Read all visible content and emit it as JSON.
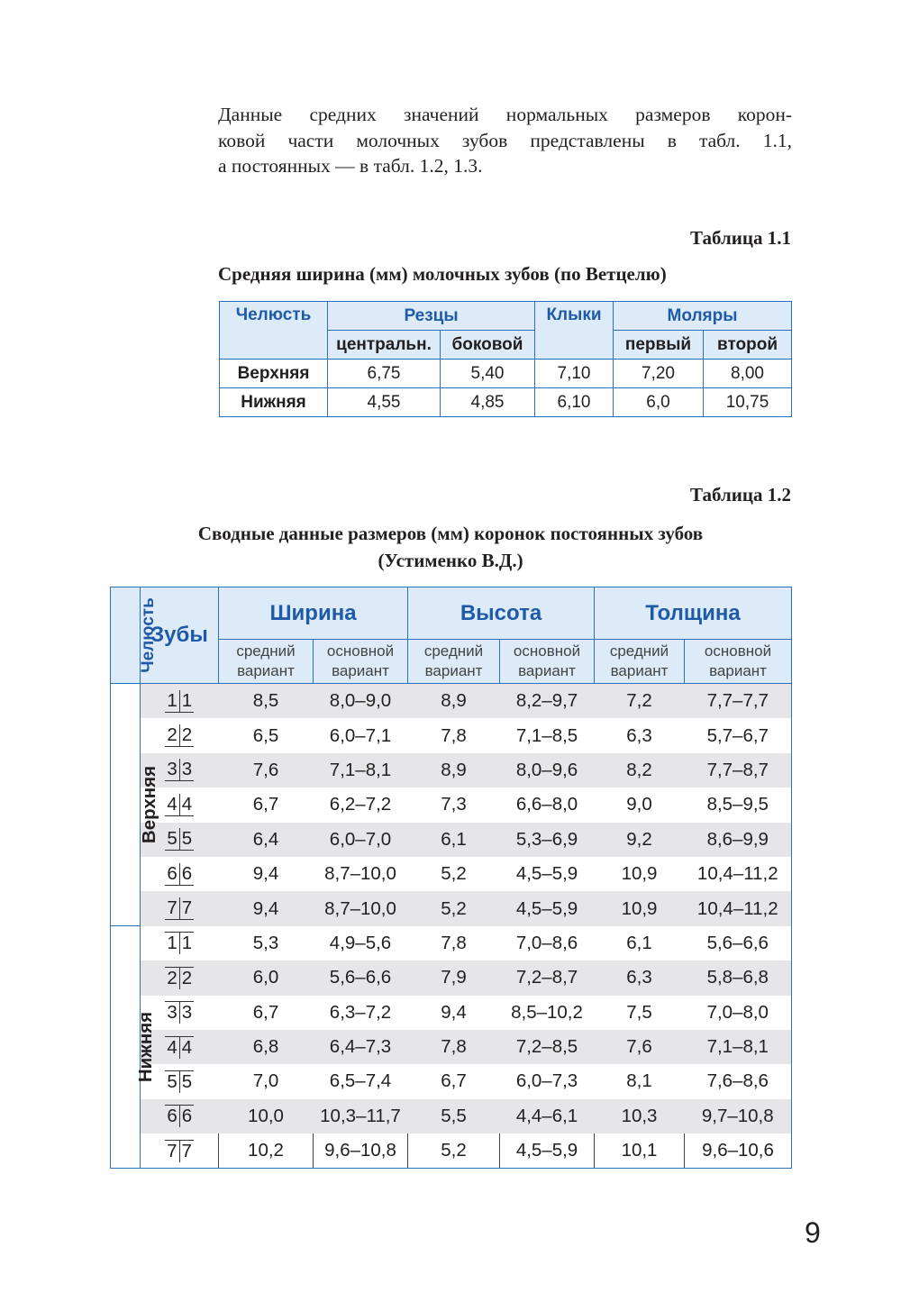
{
  "paragraph": [
    "Данные средних значений нормальных размеров корон-",
    "ковой части молочных зубов представлены в табл. 1.1,",
    "а постоянных — в табл. 1.2, 1.3."
  ],
  "table1": {
    "label": "Таблица 1.1",
    "title": "Средняя ширина (мм) молочных зубов (по Ветцелю)",
    "header": {
      "jaw": "Челюсть",
      "incisors": "Резцы",
      "canines": "Клыки",
      "molars": "Моляры",
      "central": "центральн.",
      "lateral": "боковой",
      "first": "первый",
      "second": "второй"
    },
    "rows": [
      {
        "name": "Верхняя",
        "values": [
          "6,75",
          "5,40",
          "7,10",
          "7,20",
          "8,00"
        ]
      },
      {
        "name": "Нижняя",
        "values": [
          "4,55",
          "4,85",
          "6,10",
          "6,0",
          "10,75"
        ]
      }
    ]
  },
  "table2": {
    "label": "Таблица 1.2",
    "title": [
      "Сводные данные размеров (мм) коронок постоянных зубов",
      "(Устименко В.Д.)"
    ],
    "header": {
      "jaw": "Челюсть",
      "teeth": "Зубы",
      "groups": [
        "Ширина",
        "Высота",
        "Толщина"
      ],
      "sub": [
        "средний вариант",
        "основной вариант",
        "средний вариант",
        "основной вариант",
        "средний вариант",
        "основной вариант"
      ]
    },
    "jaws": [
      {
        "name": "Верхняя",
        "rows": [
          {
            "teeth": [
              "1",
              "1"
            ],
            "values": [
              "8,5",
              "8,0–9,0",
              "8,9",
              "8,2–9,7",
              "7,2",
              "7,7–7,7"
            ]
          },
          {
            "teeth": [
              "2",
              "2"
            ],
            "values": [
              "6,5",
              "6,0–7,1",
              "7,8",
              "7,1–8,5",
              "6,3",
              "5,7–6,7"
            ]
          },
          {
            "teeth": [
              "3",
              "3"
            ],
            "values": [
              "7,6",
              "7,1–8,1",
              "8,9",
              "8,0–9,6",
              "8,2",
              "7,7–8,7"
            ]
          },
          {
            "teeth": [
              "4",
              "4"
            ],
            "values": [
              "6,7",
              "6,2–7,2",
              "7,3",
              "6,6–8,0",
              "9,0",
              "8,5–9,5"
            ]
          },
          {
            "teeth": [
              "5",
              "5"
            ],
            "values": [
              "6,4",
              "6,0–7,0",
              "6,1",
              "5,3–6,9",
              "9,2",
              "8,6–9,9"
            ]
          },
          {
            "teeth": [
              "6",
              "6"
            ],
            "values": [
              "9,4",
              "8,7–10,0",
              "5,2",
              "4,5–5,9",
              "10,9",
              "10,4–11,2"
            ]
          },
          {
            "teeth": [
              "7",
              "7"
            ],
            "values": [
              "9,4",
              "8,7–10,0",
              "5,2",
              "4,5–5,9",
              "10,9",
              "10,4–11,2"
            ]
          }
        ]
      },
      {
        "name": "Нижняя",
        "rows": [
          {
            "teeth": [
              "1",
              "1"
            ],
            "values": [
              "5,3",
              "4,9–5,6",
              "7,8",
              "7,0–8,6",
              "6,1",
              "5,6–6,6"
            ]
          },
          {
            "teeth": [
              "2",
              "2"
            ],
            "values": [
              "6,0",
              "5,6–6,6",
              "7,9",
              "7,2–8,7",
              "6,3",
              "5,8–6,8"
            ]
          },
          {
            "teeth": [
              "3",
              "3"
            ],
            "values": [
              "6,7",
              "6,3–7,2",
              "9,4",
              "8,5–10,2",
              "7,5",
              "7,0–8,0"
            ]
          },
          {
            "teeth": [
              "4",
              "4"
            ],
            "values": [
              "6,8",
              "6,4–7,3",
              "7,8",
              "7,2–8,5",
              "7,6",
              "7,1–8,1"
            ]
          },
          {
            "teeth": [
              "5",
              "5"
            ],
            "values": [
              "7,0",
              "6,5–7,4",
              "6,7",
              "6,0–7,3",
              "8,1",
              "7,6–8,6"
            ]
          },
          {
            "teeth": [
              "6",
              "6"
            ],
            "values": [
              "10,0",
              "10,3–11,7",
              "5,5",
              "4,4–6,1",
              "10,3",
              "9,7–10,8"
            ]
          },
          {
            "teeth": [
              "7",
              "7"
            ],
            "values": [
              "10,2",
              "9,6–10,8",
              "5,2",
              "4,5–5,9",
              "10,1",
              "9,6–10,6"
            ]
          }
        ]
      }
    ]
  },
  "page_number": 9
}
